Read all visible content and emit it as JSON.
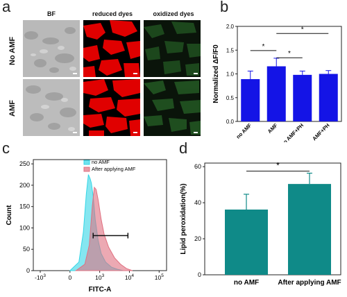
{
  "panels": {
    "a": "a",
    "b": "b",
    "c": "c",
    "d": "d"
  },
  "panel_a": {
    "columns": [
      "BF",
      "reduced dyes",
      "oxidized dyes"
    ],
    "rows": [
      "No AMF",
      "AMF"
    ]
  },
  "chart_data": [
    {
      "id": "b",
      "type": "bar",
      "ylabel": "Normalized ΔF/F0",
      "categories": [
        "no AMF",
        "AMF",
        "no AMF+PH",
        "AMF+PH"
      ],
      "values": [
        0.89,
        1.16,
        0.98,
        1.0
      ],
      "errors": [
        0.17,
        0.17,
        0.08,
        0.07
      ],
      "ylim": [
        0.0,
        2.0
      ],
      "yticks": [
        "0.0",
        "0.5",
        "1.0",
        "1.5",
        "2.0"
      ],
      "bar_color": "#1414e6",
      "significance": [
        {
          "from": 0,
          "to": 1,
          "label": "*"
        },
        {
          "from": 1,
          "to": 2,
          "label": "*"
        },
        {
          "from": 1,
          "to": 3,
          "label": "*"
        }
      ]
    },
    {
      "id": "c",
      "type": "area",
      "xlabel": "FITC-A",
      "ylabel": "Count",
      "yticks": [
        "0",
        "50",
        "100",
        "150",
        "200",
        "250"
      ],
      "ylim": [
        0,
        260
      ],
      "xticks": [
        "-10^3",
        "0",
        "10^3",
        "10^4",
        "10^5"
      ],
      "legend": [
        "no AMF",
        "After applying AMF"
      ],
      "legend_position": "top-right",
      "series": [
        {
          "name": "no AMF",
          "color": "#33d6e6",
          "x": [
            2.0,
            2.3,
            2.45,
            2.55,
            2.62,
            2.68,
            2.72,
            2.78,
            2.85,
            2.95,
            3.05,
            3.2,
            3.4,
            3.6,
            3.8
          ],
          "y": [
            0,
            20,
            90,
            180,
            225,
            215,
            205,
            175,
            120,
            70,
            40,
            20,
            8,
            3,
            0
          ]
        },
        {
          "name": "After applying AMF",
          "color": "#e07080",
          "x": [
            2.2,
            2.5,
            2.65,
            2.75,
            2.82,
            2.88,
            2.95,
            3.05,
            3.15,
            3.3,
            3.5,
            3.7,
            3.9,
            4.1
          ],
          "y": [
            0,
            15,
            60,
            150,
            195,
            190,
            165,
            120,
            85,
            55,
            30,
            15,
            5,
            0
          ]
        }
      ],
      "gate": {
        "x_start": 2.78,
        "x_end": 3.95,
        "y": 82
      }
    },
    {
      "id": "d",
      "type": "bar",
      "ylabel": "Lipid peroxidation(%)",
      "categories": [
        "no AMF",
        "After applying AMF"
      ],
      "values": [
        36.2,
        50.4
      ],
      "errors": [
        8.5,
        6.0
      ],
      "ylim": [
        0,
        62
      ],
      "yticks": [
        "0",
        "20",
        "40",
        "60"
      ],
      "bar_color": "#0f8a88",
      "significance": [
        {
          "from": 0,
          "to": 1,
          "label": "*"
        }
      ]
    }
  ]
}
